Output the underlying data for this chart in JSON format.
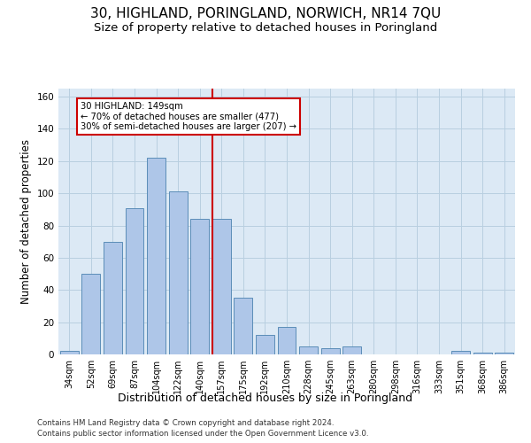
{
  "title": "30, HIGHLAND, PORINGLAND, NORWICH, NR14 7QU",
  "subtitle": "Size of property relative to detached houses in Poringland",
  "xlabel": "Distribution of detached houses by size in Poringland",
  "ylabel": "Number of detached properties",
  "bar_labels": [
    "34sqm",
    "52sqm",
    "69sqm",
    "87sqm",
    "104sqm",
    "122sqm",
    "140sqm",
    "157sqm",
    "175sqm",
    "192sqm",
    "210sqm",
    "228sqm",
    "245sqm",
    "263sqm",
    "280sqm",
    "298sqm",
    "316sqm",
    "333sqm",
    "351sqm",
    "368sqm",
    "386sqm"
  ],
  "bar_values": [
    2,
    50,
    70,
    91,
    122,
    101,
    84,
    84,
    35,
    12,
    17,
    5,
    4,
    5,
    0,
    0,
    0,
    0,
    2,
    1,
    1
  ],
  "bar_color": "#aec6e8",
  "bar_edge_color": "#5b8db8",
  "vline_x_idx": 7,
  "vline_color": "#cc0000",
  "annotation_text": "30 HIGHLAND: 149sqm\n← 70% of detached houses are smaller (477)\n30% of semi-detached houses are larger (207) →",
  "annotation_box_color": "#ffffff",
  "annotation_box_edge": "#cc0000",
  "ylim": [
    0,
    165
  ],
  "yticks": [
    0,
    20,
    40,
    60,
    80,
    100,
    120,
    140,
    160
  ],
  "grid_color": "#b8cfe0",
  "bg_color": "#dce9f5",
  "footer_line1": "Contains HM Land Registry data © Crown copyright and database right 2024.",
  "footer_line2": "Contains public sector information licensed under the Open Government Licence v3.0.",
  "title_fontsize": 11,
  "subtitle_fontsize": 9.5,
  "xlabel_fontsize": 9,
  "ylabel_fontsize": 8.5
}
